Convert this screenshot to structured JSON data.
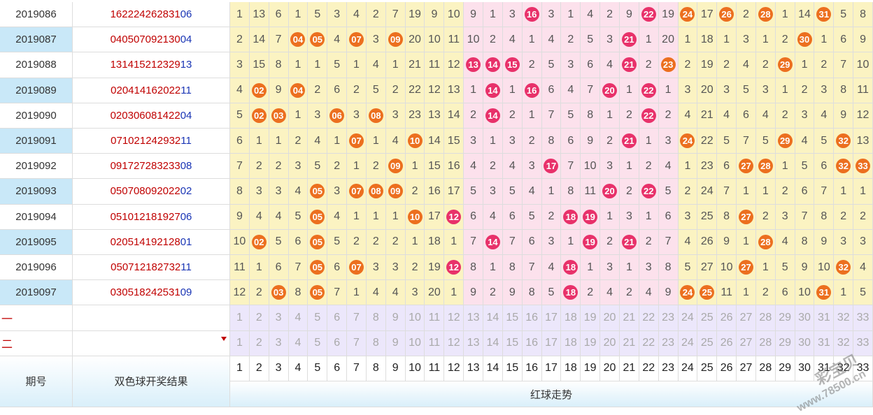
{
  "rows": [
    {
      "issue": "2019086",
      "reds": [
        "16",
        "22",
        "24",
        "26",
        "28",
        "31"
      ],
      "blue": "06",
      "cells": [
        "1",
        "13",
        "6",
        "1",
        "5",
        "3",
        "4",
        "2",
        "7",
        "19",
        "9",
        "10",
        "9",
        "1",
        "3",
        "●",
        "3",
        "1",
        "4",
        "2",
        "9",
        "●",
        "19",
        "●",
        "17",
        "●",
        "2",
        "●",
        "1",
        "14",
        "●",
        "5",
        "8"
      ]
    },
    {
      "issue": "2019087",
      "reds": [
        "04",
        "05",
        "07",
        "09",
        "21",
        "30"
      ],
      "blue": "04",
      "cells": [
        "2",
        "14",
        "7",
        "●",
        "●",
        "4",
        "●",
        "3",
        "●",
        "20",
        "10",
        "11",
        "10",
        "2",
        "4",
        "1",
        "4",
        "2",
        "5",
        "3",
        "●",
        "1",
        "20",
        "1",
        "18",
        "1",
        "3",
        "1",
        "2",
        "●",
        "1",
        "6",
        "9"
      ]
    },
    {
      "issue": "2019088",
      "reds": [
        "13",
        "14",
        "15",
        "21",
        "23",
        "29"
      ],
      "blue": "13",
      "cells": [
        "3",
        "15",
        "8",
        "1",
        "1",
        "5",
        "1",
        "4",
        "1",
        "21",
        "11",
        "12",
        "●",
        "●",
        "●",
        "2",
        "5",
        "3",
        "6",
        "4",
        "●",
        "2",
        "●",
        "2",
        "19",
        "2",
        "4",
        "2",
        "●",
        "1",
        "2",
        "7",
        "10"
      ]
    },
    {
      "issue": "2019089",
      "reds": [
        "02",
        "04",
        "14",
        "16",
        "20",
        "22"
      ],
      "blue": "11",
      "cells": [
        "4",
        "●",
        "9",
        "●",
        "2",
        "6",
        "2",
        "5",
        "2",
        "22",
        "12",
        "13",
        "1",
        "●",
        "1",
        "●",
        "6",
        "4",
        "7",
        "●",
        "1",
        "●",
        "1",
        "3",
        "20",
        "3",
        "5",
        "3",
        "1",
        "2",
        "3",
        "8",
        "11"
      ]
    },
    {
      "issue": "2019090",
      "reds": [
        "02",
        "03",
        "06",
        "08",
        "14",
        "22"
      ],
      "blue": "04",
      "cells": [
        "5",
        "●",
        "●",
        "1",
        "3",
        "●",
        "3",
        "●",
        "3",
        "23",
        "13",
        "14",
        "2",
        "●",
        "2",
        "1",
        "7",
        "5",
        "8",
        "1",
        "2",
        "●",
        "2",
        "4",
        "21",
        "4",
        "6",
        "4",
        "2",
        "3",
        "4",
        "9",
        "12"
      ]
    },
    {
      "issue": "2019091",
      "reds": [
        "07",
        "10",
        "21",
        "24",
        "29",
        "32"
      ],
      "blue": "11",
      "cells": [
        "6",
        "1",
        "1",
        "2",
        "4",
        "1",
        "●",
        "1",
        "4",
        "●",
        "14",
        "15",
        "3",
        "1",
        "3",
        "2",
        "8",
        "6",
        "9",
        "2",
        "●",
        "1",
        "3",
        "●",
        "22",
        "5",
        "7",
        "5",
        "●",
        "4",
        "5",
        "●",
        "13"
      ]
    },
    {
      "issue": "2019092",
      "reds": [
        "09",
        "17",
        "27",
        "28",
        "32",
        "33"
      ],
      "blue": "08",
      "cells": [
        "7",
        "2",
        "2",
        "3",
        "5",
        "2",
        "1",
        "2",
        "●",
        "1",
        "15",
        "16",
        "4",
        "2",
        "4",
        "3",
        "●",
        "7",
        "10",
        "3",
        "1",
        "2",
        "4",
        "1",
        "23",
        "6",
        "●",
        "●",
        "1",
        "5",
        "6",
        "●",
        "●"
      ]
    },
    {
      "issue": "2019093",
      "reds": [
        "05",
        "07",
        "08",
        "09",
        "20",
        "22"
      ],
      "blue": "02",
      "cells": [
        "8",
        "3",
        "3",
        "4",
        "●",
        "3",
        "●",
        "●",
        "●",
        "2",
        "16",
        "17",
        "5",
        "3",
        "5",
        "4",
        "1",
        "8",
        "11",
        "●",
        "2",
        "●",
        "5",
        "2",
        "24",
        "7",
        "1",
        "1",
        "2",
        "6",
        "7",
        "1",
        "1"
      ]
    },
    {
      "issue": "2019094",
      "reds": [
        "05",
        "10",
        "12",
        "18",
        "19",
        "27"
      ],
      "blue": "06",
      "cells": [
        "9",
        "4",
        "4",
        "5",
        "●",
        "4",
        "1",
        "1",
        "1",
        "●",
        "17",
        "●",
        "6",
        "4",
        "6",
        "5",
        "2",
        "●",
        "●",
        "1",
        "3",
        "1",
        "6",
        "3",
        "25",
        "8",
        "●",
        "2",
        "3",
        "7",
        "8",
        "2",
        "2"
      ]
    },
    {
      "issue": "2019095",
      "reds": [
        "02",
        "05",
        "14",
        "19",
        "21",
        "28"
      ],
      "blue": "01",
      "cells": [
        "10",
        "●",
        "5",
        "6",
        "●",
        "5",
        "2",
        "2",
        "2",
        "1",
        "18",
        "1",
        "7",
        "●",
        "7",
        "6",
        "3",
        "1",
        "●",
        "2",
        "●",
        "2",
        "7",
        "4",
        "26",
        "9",
        "1",
        "●",
        "4",
        "8",
        "9",
        "3",
        "3"
      ]
    },
    {
      "issue": "2019096",
      "reds": [
        "05",
        "07",
        "12",
        "18",
        "27",
        "32"
      ],
      "blue": "11",
      "cells": [
        "11",
        "1",
        "6",
        "7",
        "●",
        "6",
        "●",
        "3",
        "3",
        "2",
        "19",
        "●",
        "8",
        "1",
        "8",
        "7",
        "4",
        "●",
        "1",
        "3",
        "1",
        "3",
        "8",
        "5",
        "27",
        "10",
        "●",
        "1",
        "5",
        "9",
        "10",
        "●",
        "4"
      ]
    },
    {
      "issue": "2019097",
      "reds": [
        "03",
        "05",
        "18",
        "24",
        "25",
        "31"
      ],
      "blue": "09",
      "cells": [
        "12",
        "2",
        "●",
        "8",
        "●",
        "7",
        "1",
        "4",
        "4",
        "3",
        "20",
        "1",
        "9",
        "2",
        "9",
        "8",
        "5",
        "●",
        "2",
        "4",
        "2",
        "4",
        "9",
        "●",
        "●",
        "11",
        "1",
        "2",
        "6",
        "10",
        "●",
        "1",
        "5"
      ]
    }
  ],
  "numbers": [
    "1",
    "2",
    "3",
    "4",
    "5",
    "6",
    "7",
    "8",
    "9",
    "10",
    "11",
    "12",
    "13",
    "14",
    "15",
    "16",
    "17",
    "18",
    "19",
    "20",
    "21",
    "22",
    "23",
    "24",
    "25",
    "26",
    "27",
    "28",
    "29",
    "30",
    "31",
    "32",
    "33"
  ],
  "side_labels": [
    "一",
    "二"
  ],
  "header": {
    "issue_label": "期号",
    "result_label": "双色球开奖结果",
    "trend_label": "红球走势"
  },
  "watermark": {
    "brand": "彩宝贝",
    "url": "www.78500.cn"
  },
  "colors": {
    "orange_ball": "#ec6f1f",
    "pink_ball": "#e8316a",
    "yellow_zone": "#fbf3c2",
    "pink_zone": "#fce1ec",
    "lavender_row": "#ece7fb",
    "blue_row": "#c9e8f8"
  }
}
